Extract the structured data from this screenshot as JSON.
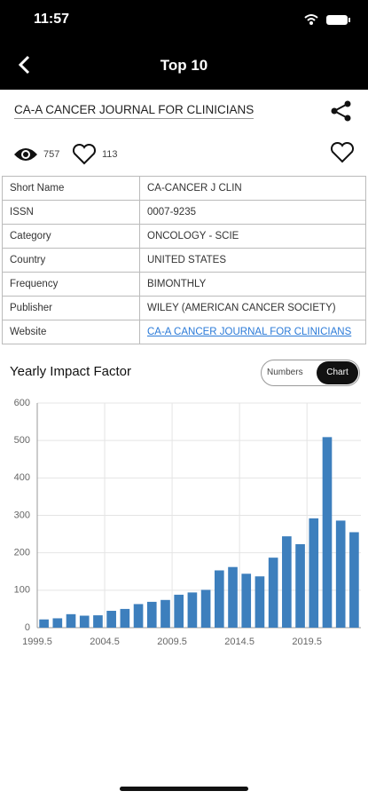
{
  "status": {
    "time": "11:57"
  },
  "header": {
    "title": "Top 10"
  },
  "journal": {
    "title": "CA-A CANCER JOURNAL FOR CLINICIANS",
    "views": 757,
    "likes": 113
  },
  "table": {
    "rows": [
      [
        "Short Name",
        "CA-CANCER J CLIN"
      ],
      [
        "ISSN",
        "0007-9235"
      ],
      [
        "Category",
        "ONCOLOGY - SCIE"
      ],
      [
        "Country",
        "UNITED STATES"
      ],
      [
        "Frequency",
        "BIMONTHLY"
      ],
      [
        "Publisher",
        "WILEY (AMERICAN CANCER SOCIETY)"
      ],
      [
        "Website",
        "CA-A CANCER JOURNAL FOR CLINICIANS"
      ]
    ]
  },
  "section": {
    "title": "Yearly Impact Factor",
    "toggle": [
      "Numbers",
      "Chart"
    ]
  },
  "chart_data": {
    "type": "bar",
    "x": [
      2000,
      2001,
      2002,
      2003,
      2004,
      2005,
      2006,
      2007,
      2008,
      2009,
      2010,
      2011,
      2012,
      2013,
      2014,
      2015,
      2016,
      2017,
      2018,
      2019,
      2020,
      2021,
      2022,
      2023
    ],
    "values": [
      22,
      25,
      36,
      32,
      33,
      45,
      50,
      63,
      69,
      74,
      88,
      94,
      101,
      153,
      162,
      144,
      137,
      187,
      244,
      223,
      292,
      509,
      286,
      255
    ],
    "color": "#3d7fbd",
    "xlim": [
      1999.5,
      2023.5
    ],
    "xticks": [
      1999.5,
      2004.5,
      2009.5,
      2014.5,
      2019.5
    ],
    "ylim": [
      0,
      600
    ],
    "yticks": [
      0,
      100,
      200,
      300,
      400,
      500,
      600
    ],
    "grid": true
  }
}
